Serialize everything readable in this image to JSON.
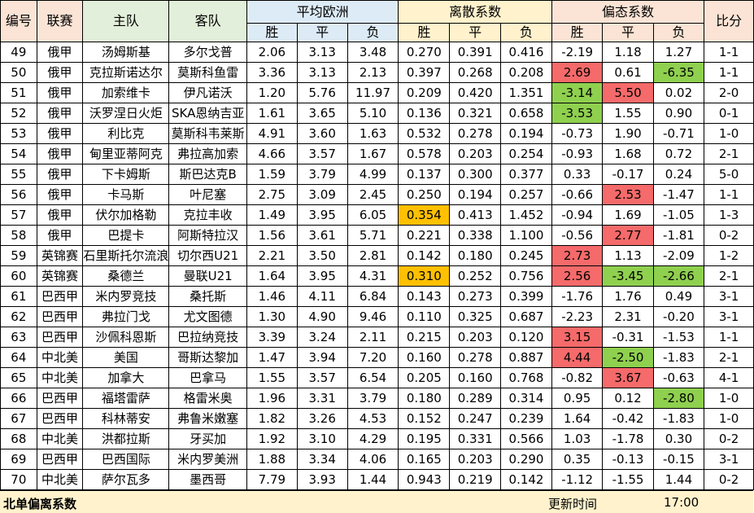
{
  "header": {
    "id": "编号",
    "league": "联赛",
    "home": "主队",
    "away": "客队",
    "avg_odds": "平均欧洲",
    "dispersion": "离散系数",
    "skewness": "偏态系数",
    "score": "比分",
    "win": "胜",
    "draw": "平",
    "lose": "负"
  },
  "rows": [
    {
      "id": "49",
      "league": "俄甲",
      "home": "汤姆斯基",
      "away": "多尔戈普",
      "o_w": "2.06",
      "o_d": "3.13",
      "o_l": "3.48",
      "d_w": "0.270",
      "d_d": "0.391",
      "d_l": "0.416",
      "s_w": "-2.19",
      "s_d": "1.18",
      "s_l": "1.27",
      "score": "1-1",
      "hl": {}
    },
    {
      "id": "50",
      "league": "俄甲",
      "home": "克拉斯诺达尔",
      "away": "莫斯科鱼雷",
      "o_w": "3.36",
      "o_d": "3.13",
      "o_l": "2.13",
      "d_w": "0.397",
      "d_d": "0.268",
      "d_l": "0.208",
      "s_w": "2.69",
      "s_d": "0.61",
      "s_l": "-6.35",
      "score": "1-1",
      "hl": {
        "s_w": "red",
        "s_l": "green"
      }
    },
    {
      "id": "51",
      "league": "俄甲",
      "home": "加索维卡",
      "away": "伊凡诺沃",
      "o_w": "1.20",
      "o_d": "5.76",
      "o_l": "11.97",
      "d_w": "0.209",
      "d_d": "0.420",
      "d_l": "1.351",
      "s_w": "-3.14",
      "s_d": "5.50",
      "s_l": "0.02",
      "score": "2-0",
      "hl": {
        "s_w": "green",
        "s_d": "red"
      }
    },
    {
      "id": "52",
      "league": "俄甲",
      "home": "沃罗涅日火炬",
      "away": "SKA恩纳吉亚",
      "o_w": "1.61",
      "o_d": "3.65",
      "o_l": "5.10",
      "d_w": "0.136",
      "d_d": "0.321",
      "d_l": "0.658",
      "s_w": "-3.53",
      "s_d": "1.55",
      "s_l": "0.90",
      "score": "0-1",
      "hl": {
        "s_w": "green"
      }
    },
    {
      "id": "53",
      "league": "俄甲",
      "home": "利比克",
      "away": "莫斯科韦莱斯",
      "o_w": "4.91",
      "o_d": "3.60",
      "o_l": "1.63",
      "d_w": "0.532",
      "d_d": "0.278",
      "d_l": "0.194",
      "s_w": "-0.73",
      "s_d": "1.90",
      "s_l": "-0.71",
      "score": "1-0",
      "hl": {}
    },
    {
      "id": "54",
      "league": "俄甲",
      "home": "甸里亚蒂阿克",
      "away": "弗拉高加索",
      "o_w": "4.66",
      "o_d": "3.57",
      "o_l": "1.67",
      "d_w": "0.578",
      "d_d": "0.203",
      "d_l": "0.254",
      "s_w": "-0.93",
      "s_d": "1.68",
      "s_l": "0.72",
      "score": "2-1",
      "hl": {}
    },
    {
      "id": "55",
      "league": "俄甲",
      "home": "下卡姆斯",
      "away": "斯巴达克B",
      "o_w": "1.59",
      "o_d": "3.79",
      "o_l": "4.99",
      "d_w": "0.137",
      "d_d": "0.300",
      "d_l": "0.377",
      "s_w": "0.33",
      "s_d": "-0.17",
      "s_l": "0.24",
      "score": "5-0",
      "hl": {}
    },
    {
      "id": "56",
      "league": "俄甲",
      "home": "卡马斯",
      "away": "叶尼塞",
      "o_w": "2.75",
      "o_d": "3.09",
      "o_l": "2.45",
      "d_w": "0.250",
      "d_d": "0.194",
      "d_l": "0.257",
      "s_w": "-0.66",
      "s_d": "2.53",
      "s_l": "-1.47",
      "score": "1-1",
      "hl": {
        "s_d": "red"
      }
    },
    {
      "id": "57",
      "league": "俄甲",
      "home": "伏尔加格勒",
      "away": "克拉丰收",
      "o_w": "1.49",
      "o_d": "3.95",
      "o_l": "6.05",
      "d_w": "0.354",
      "d_d": "0.413",
      "d_l": "1.452",
      "s_w": "-0.94",
      "s_d": "1.69",
      "s_l": "-1.05",
      "score": "1-3",
      "hl": {
        "d_w": "orange"
      }
    },
    {
      "id": "58",
      "league": "俄甲",
      "home": "巴提卡",
      "away": "阿斯特拉汉",
      "o_w": "1.56",
      "o_d": "3.61",
      "o_l": "5.71",
      "d_w": "0.221",
      "d_d": "0.338",
      "d_l": "1.100",
      "s_w": "-0.56",
      "s_d": "2.77",
      "s_l": "-1.81",
      "score": "0-2",
      "hl": {
        "s_d": "red"
      }
    },
    {
      "id": "59",
      "league": "英锦赛",
      "home": "石里斯托尔流浪",
      "away": "切尔西U21",
      "o_w": "2.21",
      "o_d": "3.50",
      "o_l": "2.81",
      "d_w": "0.142",
      "d_d": "0.180",
      "d_l": "0.245",
      "s_w": "2.73",
      "s_d": "1.13",
      "s_l": "-2.09",
      "score": "1-2",
      "hl": {
        "s_w": "red"
      }
    },
    {
      "id": "60",
      "league": "英锦赛",
      "home": "桑德兰",
      "away": "曼联U21",
      "o_w": "1.64",
      "o_d": "3.95",
      "o_l": "4.31",
      "d_w": "0.310",
      "d_d": "0.252",
      "d_l": "0.756",
      "s_w": "2.56",
      "s_d": "-3.45",
      "s_l": "-2.66",
      "score": "2-1",
      "hl": {
        "d_w": "orange",
        "s_w": "red",
        "s_d": "green",
        "s_l": "green"
      }
    },
    {
      "id": "61",
      "league": "巴西甲",
      "home": "米内罗竞技",
      "away": "桑托斯",
      "o_w": "1.46",
      "o_d": "4.11",
      "o_l": "6.84",
      "d_w": "0.143",
      "d_d": "0.273",
      "d_l": "0.399",
      "s_w": "-1.76",
      "s_d": "1.76",
      "s_l": "0.49",
      "score": "3-1",
      "hl": {}
    },
    {
      "id": "62",
      "league": "巴西甲",
      "home": "弗拉门戈",
      "away": "尤文图德",
      "o_w": "1.30",
      "o_d": "4.90",
      "o_l": "9.46",
      "d_w": "0.110",
      "d_d": "0.325",
      "d_l": "0.687",
      "s_w": "-2.23",
      "s_d": "2.31",
      "s_l": "-0.20",
      "score": "3-1",
      "hl": {}
    },
    {
      "id": "63",
      "league": "巴西甲",
      "home": "沙佩科恩斯",
      "away": "巴拉纳竞技",
      "o_w": "3.39",
      "o_d": "3.24",
      "o_l": "2.11",
      "d_w": "0.215",
      "d_d": "0.203",
      "d_l": "0.120",
      "s_w": "3.15",
      "s_d": "-0.31",
      "s_l": "-1.53",
      "score": "1-1",
      "hl": {
        "s_w": "red"
      }
    },
    {
      "id": "64",
      "league": "中北美",
      "home": "美国",
      "away": "哥斯达黎加",
      "o_w": "1.47",
      "o_d": "3.94",
      "o_l": "7.20",
      "d_w": "0.160",
      "d_d": "0.278",
      "d_l": "0.887",
      "s_w": "4.44",
      "s_d": "-2.50",
      "s_l": "-1.83",
      "score": "2-1",
      "hl": {
        "s_w": "red",
        "s_d": "green"
      }
    },
    {
      "id": "65",
      "league": "中北美",
      "home": "加拿大",
      "away": "巴拿马",
      "o_w": "1.55",
      "o_d": "3.57",
      "o_l": "6.54",
      "d_w": "0.205",
      "d_d": "0.160",
      "d_l": "0.768",
      "s_w": "-0.82",
      "s_d": "3.67",
      "s_l": "-0.63",
      "score": "4-1",
      "hl": {
        "s_d": "red"
      }
    },
    {
      "id": "66",
      "league": "巴西甲",
      "home": "福塔雷萨",
      "away": "格雷米奥",
      "o_w": "1.96",
      "o_d": "3.31",
      "o_l": "3.79",
      "d_w": "0.180",
      "d_d": "0.289",
      "d_l": "0.314",
      "s_w": "0.95",
      "s_d": "0.12",
      "s_l": "-2.80",
      "score": "1-0",
      "hl": {
        "s_l": "green"
      }
    },
    {
      "id": "67",
      "league": "巴西甲",
      "home": "科林蒂安",
      "away": "弗鲁米嫩塞",
      "o_w": "1.82",
      "o_d": "3.26",
      "o_l": "4.53",
      "d_w": "0.152",
      "d_d": "0.247",
      "d_l": "0.239",
      "s_w": "1.64",
      "s_d": "-0.42",
      "s_l": "-1.83",
      "score": "1-0",
      "hl": {}
    },
    {
      "id": "68",
      "league": "中北美",
      "home": "洪都拉斯",
      "away": "牙买加",
      "o_w": "1.92",
      "o_d": "3.10",
      "o_l": "4.29",
      "d_w": "0.195",
      "d_d": "0.331",
      "d_l": "0.566",
      "s_w": "1.03",
      "s_d": "-1.78",
      "s_l": "0.30",
      "score": "0-2",
      "hl": {}
    },
    {
      "id": "69",
      "league": "巴西甲",
      "home": "巴西国际",
      "away": "米内罗美洲",
      "o_w": "1.88",
      "o_d": "3.34",
      "o_l": "4.06",
      "d_w": "0.165",
      "d_d": "0.203",
      "d_l": "0.290",
      "s_w": "0.35",
      "s_d": "-0.13",
      "s_l": "-0.15",
      "score": "3-1",
      "hl": {}
    },
    {
      "id": "70",
      "league": "中北美",
      "home": "萨尔瓦多",
      "away": "墨西哥",
      "o_w": "7.79",
      "o_d": "3.93",
      "o_l": "1.44",
      "d_w": "0.943",
      "d_d": "0.219",
      "d_l": "0.142",
      "s_w": "-1.12",
      "s_d": "-1.55",
      "s_l": "1.44",
      "score": "0-2",
      "hl": {}
    }
  ],
  "footer": {
    "title": "北单偏离系数",
    "update_label": "更新时间",
    "update_time": "17:00"
  },
  "colors": {
    "red": "#f56a6a",
    "green": "#8fd04f",
    "orange": "#ffc000"
  }
}
